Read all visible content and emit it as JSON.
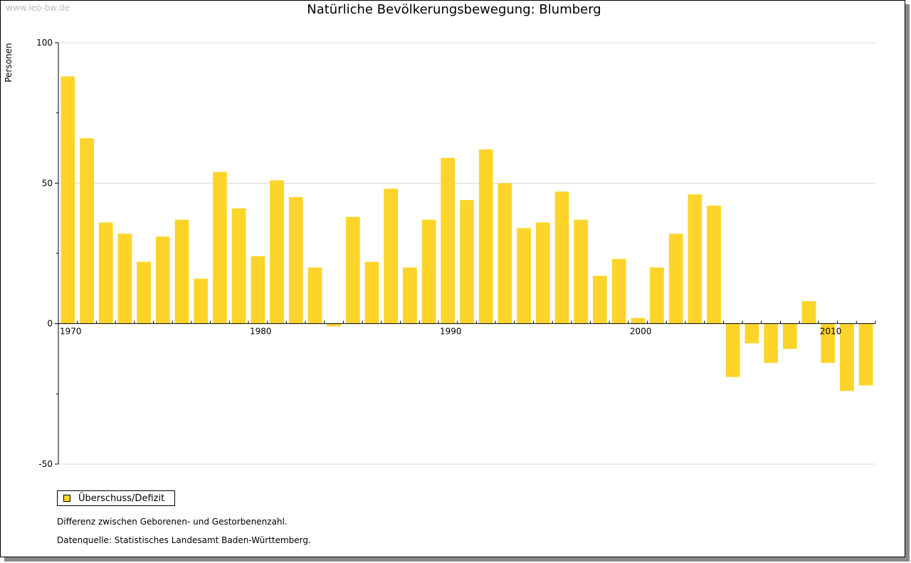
{
  "header": {
    "watermark": "www.leo-bw.de",
    "title": "Natürliche Bevölkerungsbewegung: Blumberg"
  },
  "legend": {
    "label": "Überschuss/Defizit"
  },
  "notes": {
    "definition": "Differenz zwischen Geborenen- und Gestorbenenzahl.",
    "source": "Datenquelle: Statistisches Landesamt Baden-Württemberg."
  },
  "colors": {
    "bar": "#fdd52a",
    "grid": "#d8d8d8",
    "axis": "#000000"
  },
  "chart_data": {
    "type": "bar",
    "ylabel": "Personen",
    "ylim": [
      -50,
      100
    ],
    "yticks": [
      -50,
      0,
      50,
      100
    ],
    "grid": true,
    "legend_position": "bottom-left",
    "xtick_labels": [
      "1970",
      "1980",
      "1990",
      "2000",
      "2010"
    ],
    "categories": [
      1970,
      1971,
      1972,
      1973,
      1974,
      1975,
      1976,
      1977,
      1978,
      1979,
      1980,
      1981,
      1982,
      1983,
      1984,
      1985,
      1986,
      1987,
      1988,
      1989,
      1990,
      1991,
      1992,
      1993,
      1994,
      1995,
      1996,
      1997,
      1998,
      1999,
      2000,
      2001,
      2002,
      2003,
      2004,
      2005,
      2006,
      2007,
      2008,
      2009,
      2010,
      2011,
      2012
    ],
    "series": [
      {
        "name": "Überschuss/Defizit",
        "values": [
          88,
          66,
          36,
          32,
          22,
          31,
          37,
          16,
          54,
          41,
          24,
          51,
          45,
          20,
          -1,
          38,
          22,
          48,
          20,
          37,
          59,
          44,
          62,
          50,
          34,
          36,
          47,
          37,
          17,
          23,
          2,
          20,
          32,
          46,
          42,
          -19,
          -7,
          -14,
          -9,
          8,
          -14,
          -24,
          -22
        ]
      }
    ]
  }
}
